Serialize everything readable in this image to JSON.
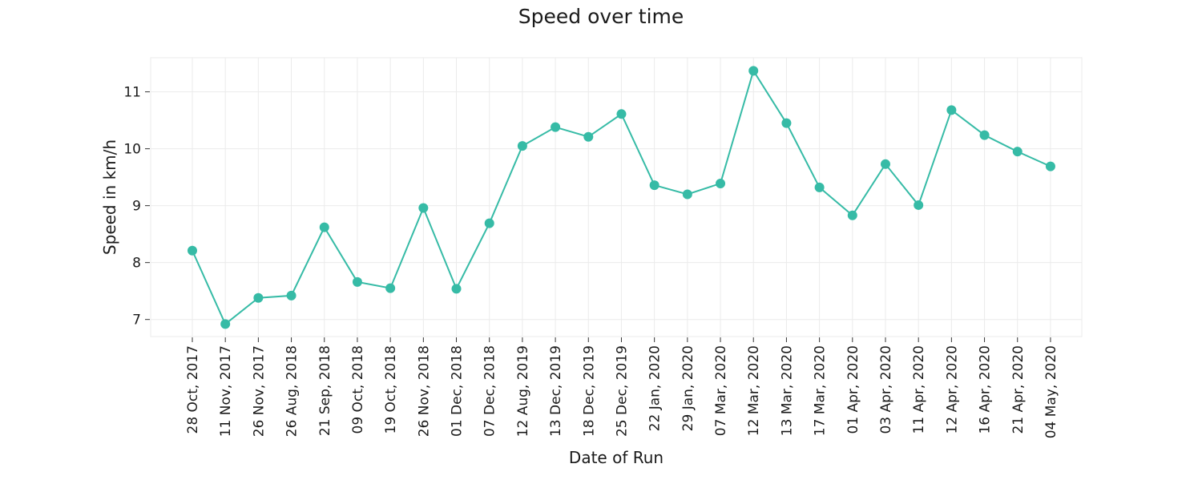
{
  "chart_data": {
    "type": "line",
    "title": "Speed over time",
    "xlabel": "Date of Run",
    "ylabel": "Speed in km/h",
    "ylim": [
      6.7,
      11.6
    ],
    "yticks": [
      7,
      8,
      9,
      10,
      11
    ],
    "grid": true,
    "marker": "circle",
    "colors": {
      "series": "#36bba6"
    },
    "categories": [
      "28 Oct, 2017",
      "11 Nov, 2017",
      "26 Nov, 2017",
      "26 Aug, 2018",
      "21 Sep, 2018",
      "09 Oct, 2018",
      "19 Oct, 2018",
      "26 Nov, 2018",
      "01 Dec, 2018",
      "07 Dec, 2018",
      "12 Aug, 2019",
      "13 Dec, 2019",
      "18 Dec, 2019",
      "25 Dec, 2019",
      "22 Jan, 2020",
      "29 Jan, 2020",
      "07 Mar, 2020",
      "12 Mar, 2020",
      "13 Mar, 2020",
      "17 Mar, 2020",
      "01 Apr, 2020",
      "03 Apr, 2020",
      "11 Apr, 2020",
      "12 Apr, 2020",
      "16 Apr, 2020",
      "21 Apr, 2020",
      "04 May, 2020"
    ],
    "values": [
      8.21,
      6.92,
      7.38,
      7.42,
      8.62,
      7.66,
      7.55,
      8.96,
      7.54,
      8.69,
      10.05,
      10.38,
      10.21,
      10.61,
      9.36,
      9.2,
      9.39,
      11.37,
      10.45,
      9.32,
      8.83,
      9.73,
      9.01,
      10.68,
      10.24,
      9.95,
      9.69
    ]
  }
}
